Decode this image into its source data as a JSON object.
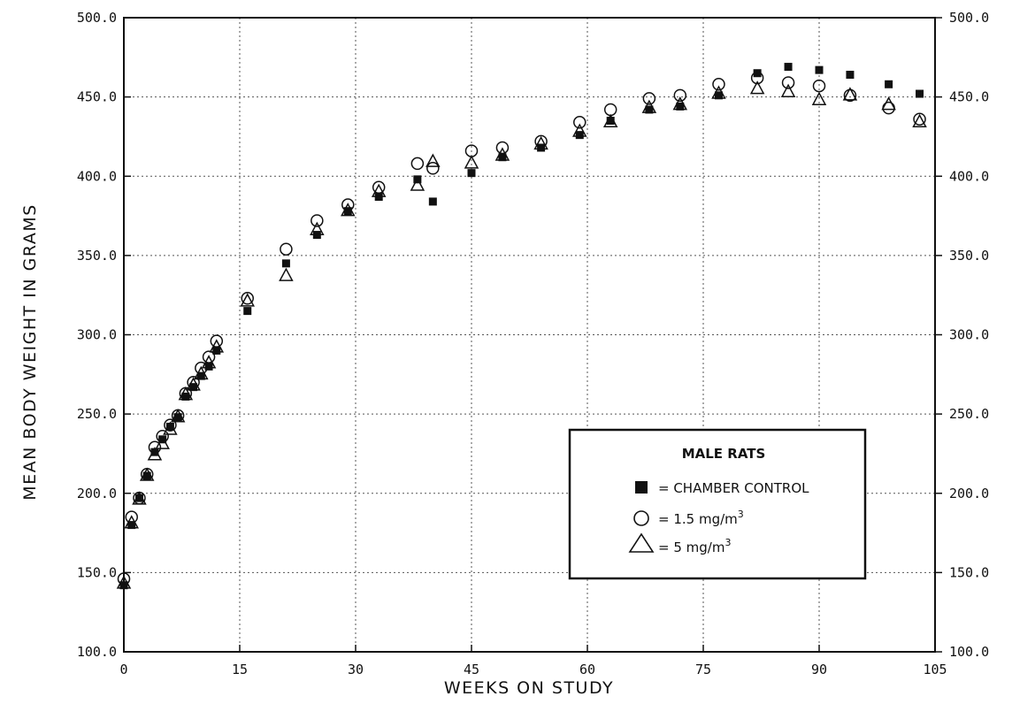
{
  "chart_data": {
    "type": "scatter",
    "xlabel": "WEEKS ON STUDY",
    "ylabel": "MEAN BODY WEIGHT IN GRAMS",
    "xlim": [
      0,
      105
    ],
    "ylim": [
      100,
      500
    ],
    "x_ticks": [
      0,
      15,
      30,
      45,
      60,
      75,
      90,
      105
    ],
    "x_tick_labels": [
      "0",
      "15",
      "30",
      "45",
      "60",
      "75",
      "90",
      "105"
    ],
    "y_ticks": [
      100,
      150,
      200,
      250,
      300,
      350,
      400,
      450,
      500
    ],
    "y_tick_labels": [
      "100.0",
      "150.0",
      "200.0",
      "250.0",
      "300.0",
      "350.0",
      "400.0",
      "450.0",
      "500.0"
    ],
    "grid": true,
    "legend": {
      "title": "MALE RATS",
      "placement": "lower-right",
      "entries": [
        {
          "marker": "filled-square",
          "label": "= CHAMBER CONTROL"
        },
        {
          "marker": "open-circle",
          "label": "= 1.5 mg/m",
          "sup": "3"
        },
        {
          "marker": "open-triangle",
          "label": "= 5 mg/m",
          "sup": "3"
        }
      ]
    },
    "series": [
      {
        "marker": "filled-square",
        "x": [
          0,
          1,
          2,
          3,
          4,
          5,
          6,
          7,
          8,
          9,
          10,
          11,
          12,
          16,
          21,
          25,
          29,
          33,
          38,
          40,
          45,
          49,
          54,
          59,
          63,
          68,
          72,
          77,
          82,
          86,
          90,
          94,
          99,
          103
        ],
        "y": [
          142,
          180,
          197,
          211,
          226,
          234,
          242,
          248,
          261,
          267,
          274,
          280,
          290,
          315,
          345,
          363,
          378,
          387,
          398,
          384,
          402,
          412,
          418,
          426,
          435,
          442,
          444,
          451,
          465,
          469,
          467,
          464,
          458,
          452
        ]
      },
      {
        "marker": "open-circle",
        "x": [
          0,
          1,
          2,
          3,
          4,
          5,
          6,
          7,
          8,
          9,
          10,
          11,
          12,
          16,
          21,
          25,
          29,
          33,
          38,
          40,
          45,
          49,
          54,
          59,
          63,
          68,
          72,
          77,
          82,
          86,
          90,
          94,
          99,
          103
        ],
        "y": [
          146,
          185,
          197,
          212,
          229,
          236,
          243,
          249,
          263,
          270,
          279,
          286,
          296,
          323,
          354,
          372,
          382,
          393,
          408,
          405,
          416,
          418,
          422,
          434,
          442,
          449,
          451,
          458,
          462,
          459,
          457,
          451,
          443,
          436
        ]
      },
      {
        "marker": "open-triangle",
        "x": [
          0,
          1,
          2,
          3,
          4,
          5,
          6,
          7,
          8,
          9,
          10,
          11,
          12,
          16,
          21,
          25,
          29,
          33,
          38,
          40,
          45,
          49,
          54,
          59,
          63,
          68,
          72,
          77,
          82,
          86,
          90,
          94,
          99,
          103
        ],
        "y": [
          143,
          181,
          196,
          211,
          224,
          231,
          240,
          248,
          262,
          268,
          275,
          282,
          292,
          321,
          337,
          366,
          378,
          390,
          394,
          409,
          408,
          413,
          420,
          428,
          434,
          443,
          445,
          452,
          455,
          453,
          448,
          451,
          445,
          434
        ]
      }
    ]
  }
}
